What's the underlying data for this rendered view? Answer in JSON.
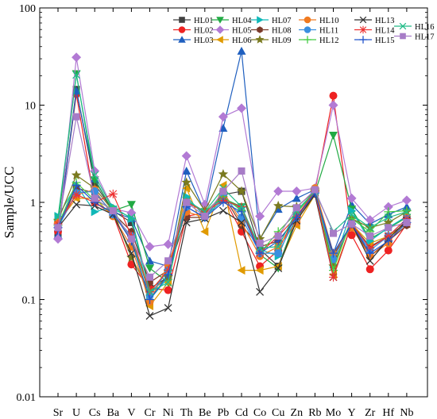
{
  "chart_data": {
    "type": "line",
    "ylabel": "Sample/UCC",
    "xlabel": "",
    "yscale": "log",
    "ylim": [
      0.01,
      100
    ],
    "y_ticks": [
      "0.01",
      "0.1",
      "1",
      "10",
      "100"
    ],
    "grid": false,
    "legend_position": "top-right",
    "categories": [
      "Sr",
      "U",
      "Cs",
      "Ba",
      "V",
      "Cr",
      "Ni",
      "Th",
      "Be",
      "Pb",
      "Cd",
      "Co",
      "Cu",
      "Zn",
      "Rb",
      "Mo",
      "Y",
      "Zr",
      "Hf",
      "Nb"
    ],
    "series": [
      {
        "name": "HL01",
        "color": "#404040",
        "marker": "square",
        "values": [
          0.48,
          14.5,
          1.55,
          0.82,
          0.62,
          0.13,
          0.17,
          1.05,
          0.78,
          1.2,
          1.3,
          0.33,
          0.22,
          0.7,
          1.22,
          0.3,
          0.6,
          0.35,
          0.45,
          0.62
        ]
      },
      {
        "name": "HL02",
        "color": "#ee2222",
        "marker": "circle",
        "values": [
          0.5,
          13.0,
          1.0,
          0.75,
          0.23,
          0.13,
          0.125,
          0.72,
          0.78,
          1.15,
          0.5,
          0.22,
          0.32,
          0.78,
          1.3,
          12.5,
          0.46,
          0.205,
          0.32,
          0.6
        ]
      },
      {
        "name": "HL03",
        "color": "#1f5fbf",
        "marker": "triangle-up",
        "values": [
          0.46,
          14.0,
          1.75,
          0.8,
          0.68,
          0.25,
          0.22,
          2.1,
          0.8,
          5.8,
          36.0,
          0.42,
          0.85,
          1.1,
          1.35,
          0.3,
          0.95,
          0.6,
          0.75,
          0.9
        ]
      },
      {
        "name": "HL04",
        "color": "#22aa44",
        "marker": "triangle-down",
        "values": [
          0.6,
          21.0,
          1.7,
          0.82,
          0.95,
          0.21,
          0.15,
          1.05,
          0.8,
          1.1,
          0.9,
          0.29,
          0.21,
          0.73,
          1.25,
          4.9,
          0.85,
          0.42,
          0.54,
          0.7
        ]
      },
      {
        "name": "HL05",
        "color": "#b27ad4",
        "marker": "diamond",
        "values": [
          0.42,
          31.0,
          2.1,
          0.86,
          0.78,
          0.35,
          0.37,
          3.0,
          0.95,
          7.6,
          9.3,
          0.72,
          1.3,
          1.3,
          1.4,
          10.0,
          1.1,
          0.66,
          0.9,
          1.05
        ]
      },
      {
        "name": "HL06",
        "color": "#e09a00",
        "marker": "triangle-left",
        "values": [
          0.62,
          1.1,
          1.1,
          0.72,
          0.45,
          0.086,
          0.15,
          1.4,
          0.5,
          1.5,
          0.2,
          0.2,
          0.22,
          0.58,
          1.2,
          0.18,
          0.6,
          0.38,
          0.45,
          0.6
        ]
      },
      {
        "name": "HL07",
        "color": "#10b8b8",
        "marker": "triangle-right",
        "values": [
          0.72,
          1.5,
          0.8,
          0.9,
          0.68,
          0.1,
          0.17,
          1.15,
          0.72,
          1.05,
          0.88,
          0.33,
          0.28,
          0.8,
          1.25,
          0.23,
          0.82,
          0.4,
          0.55,
          0.72
        ]
      },
      {
        "name": "HL08",
        "color": "#7a3a2a",
        "marker": "hexagon",
        "values": [
          0.55,
          1.4,
          1.25,
          0.78,
          0.5,
          0.15,
          0.2,
          0.7,
          0.7,
          1.2,
          0.58,
          0.35,
          0.4,
          0.68,
          1.22,
          0.28,
          0.6,
          0.28,
          0.4,
          0.58
        ]
      },
      {
        "name": "HL09",
        "color": "#7a7a20",
        "marker": "star",
        "values": [
          0.65,
          1.9,
          1.4,
          0.82,
          0.27,
          0.12,
          0.17,
          1.6,
          0.82,
          1.95,
          1.3,
          0.42,
          0.92,
          0.9,
          1.3,
          0.22,
          0.68,
          0.55,
          0.62,
          0.8
        ]
      },
      {
        "name": "HL10",
        "color": "#f07a20",
        "marker": "circle",
        "values": [
          0.62,
          1.2,
          1.35,
          0.72,
          0.35,
          0.095,
          0.23,
          0.8,
          0.7,
          1.3,
          0.62,
          0.28,
          0.35,
          0.62,
          1.4,
          0.3,
          0.55,
          0.28,
          0.38,
          0.7
        ]
      },
      {
        "name": "HL11",
        "color": "#3a8fe0",
        "marker": "circle",
        "values": [
          0.55,
          1.25,
          1.3,
          0.75,
          0.45,
          0.11,
          0.2,
          0.9,
          0.7,
          1.2,
          0.7,
          0.3,
          0.3,
          0.7,
          1.25,
          0.26,
          0.6,
          0.32,
          0.45,
          0.68
        ]
      },
      {
        "name": "HL12",
        "color": "#44cc44",
        "marker": "plus",
        "values": [
          0.58,
          1.6,
          1.05,
          0.85,
          0.4,
          0.12,
          0.2,
          1.0,
          0.8,
          1.15,
          0.82,
          0.3,
          0.5,
          0.78,
          1.3,
          0.2,
          0.68,
          0.5,
          0.8,
          0.82
        ]
      },
      {
        "name": "HL13",
        "color": "#333333",
        "marker": "x",
        "values": [
          0.55,
          0.95,
          0.92,
          0.75,
          0.3,
          0.068,
          0.082,
          0.62,
          0.68,
          0.82,
          0.62,
          0.12,
          0.21,
          0.65,
          1.2,
          0.17,
          0.6,
          0.25,
          0.42,
          0.65
        ]
      },
      {
        "name": "HL14",
        "color": "#ee3333",
        "marker": "asterisk",
        "values": [
          0.6,
          1.2,
          1.0,
          1.22,
          0.45,
          0.12,
          0.2,
          1.0,
          0.8,
          1.05,
          0.9,
          0.3,
          0.45,
          0.72,
          1.3,
          0.17,
          0.6,
          0.34,
          0.45,
          0.68
        ]
      },
      {
        "name": "HL15",
        "color": "#2255cc",
        "marker": "plus",
        "values": [
          0.55,
          1.5,
          1.0,
          0.78,
          0.4,
          0.1,
          0.18,
          0.9,
          0.7,
          1.0,
          0.8,
          0.3,
          0.4,
          0.7,
          1.25,
          0.3,
          0.6,
          0.3,
          0.4,
          0.62
        ]
      },
      {
        "name": "HL16",
        "color": "#22bb88",
        "marker": "x",
        "values": [
          0.7,
          20.5,
          1.9,
          0.85,
          0.7,
          0.12,
          0.15,
          1.05,
          0.8,
          1.4,
          0.9,
          0.34,
          0.35,
          0.82,
          1.3,
          0.5,
          0.75,
          0.55,
          0.7,
          0.8
        ]
      },
      {
        "name": "HL17",
        "color": "#a77cc7",
        "marker": "square",
        "values": [
          0.55,
          7.6,
          1.1,
          0.82,
          0.42,
          0.17,
          0.25,
          1.0,
          0.72,
          1.3,
          2.1,
          0.38,
          0.45,
          0.88,
          1.35,
          0.48,
          0.6,
          0.45,
          0.55,
          0.62
        ]
      }
    ]
  }
}
